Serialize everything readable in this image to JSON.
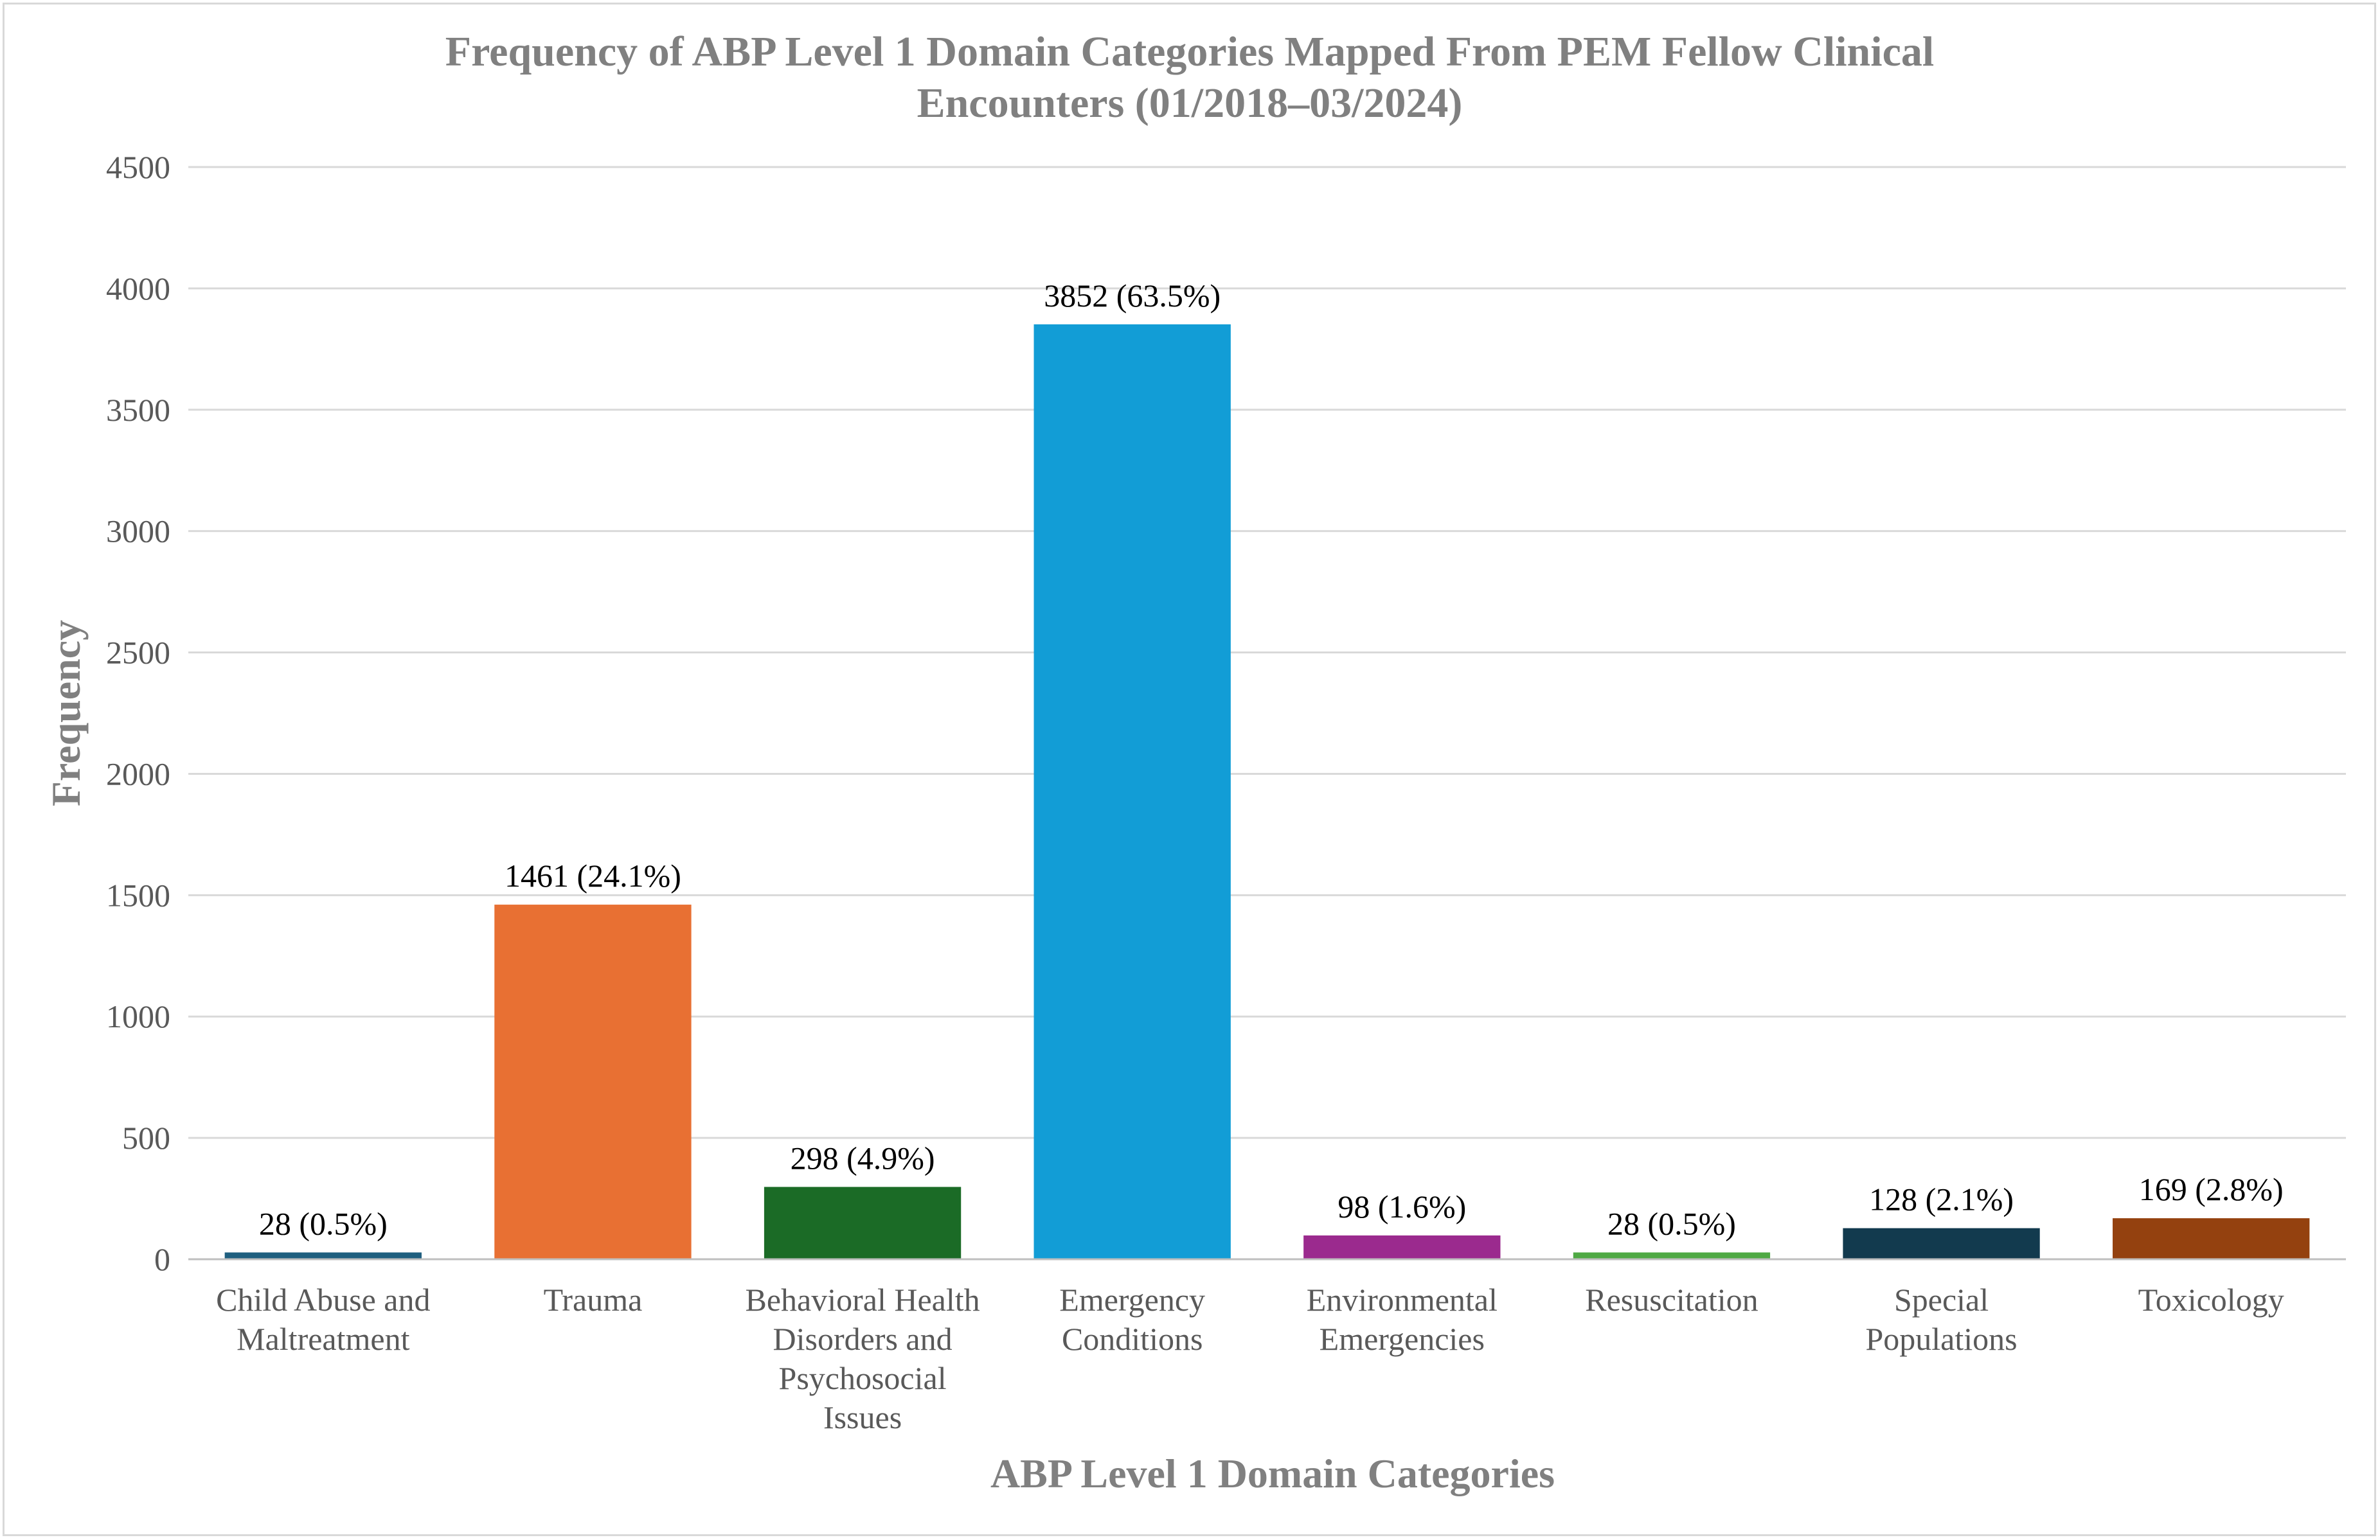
{
  "chart_data": {
    "type": "bar",
    "title_lines": [
      "Frequency of ABP Level 1 Domain Categories Mapped From PEM Fellow Clinical",
      "Encounters (01/2018–03/2024)"
    ],
    "xlabel": "ABP Level 1 Domain Categories",
    "ylabel": "Frequency",
    "ylim": [
      0,
      4500
    ],
    "yticks": [
      "0",
      "500",
      "1000",
      "1500",
      "2000",
      "2500",
      "3000",
      "3500",
      "4000",
      "4500"
    ],
    "grid": true,
    "categories": [
      [
        "Child Abuse and",
        "Maltreatment"
      ],
      [
        "Trauma"
      ],
      [
        "Behavioral Health",
        "Disorders and",
        "Psychosocial",
        "Issues"
      ],
      [
        "Emergency",
        "Conditions"
      ],
      [
        "Environmental",
        "Emergencies"
      ],
      [
        "Resuscitation"
      ],
      [
        "Special",
        "Populations"
      ],
      [
        "Toxicology"
      ]
    ],
    "values": [
      28,
      1461,
      298,
      3852,
      98,
      28,
      128,
      169
    ],
    "data_labels": [
      "28 (0.5%)",
      "1461 (24.1%)",
      "298 (4.9%)",
      "3852 (63.5%)",
      "98 (1.6%)",
      "28 (0.5%)",
      "128 (2.1%)",
      "169 (2.8%)"
    ],
    "colors": [
      "#1f5f7f",
      "#e87033",
      "#1b6b26",
      "#129dd6",
      "#9b2a8e",
      "#4fa944",
      "#123a4e",
      "#94410f"
    ]
  }
}
